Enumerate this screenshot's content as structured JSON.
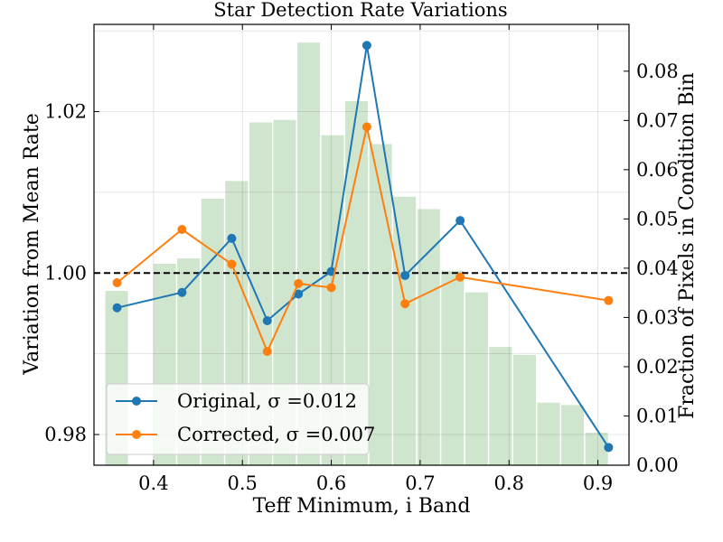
{
  "chart_data": {
    "type": "line",
    "title": "Star Detection Rate Variations",
    "xlabel": "Teff Minimum, i Band",
    "ylabel": "Variation from Mean Rate",
    "y2label": "Fraction of Pixels in Condition Bin",
    "xlim": [
      0.333,
      0.935
    ],
    "ylim": [
      0.9762,
      1.0308
    ],
    "y2lim": [
      0.0,
      0.0895
    ],
    "x_ticks": [
      "0.4",
      "0.5",
      "0.6",
      "0.7",
      "0.8",
      "0.9"
    ],
    "x_tick_values": [
      0.4,
      0.5,
      0.6,
      0.7,
      0.8,
      0.9
    ],
    "y_ticks": [
      "0.98",
      "1.00",
      "1.02"
    ],
    "y_tick_values": [
      0.98,
      1.0,
      1.02
    ],
    "y2_ticks": [
      "0.00",
      "0.01",
      "0.02",
      "0.03",
      "0.04",
      "0.05",
      "0.06",
      "0.07",
      "0.08"
    ],
    "y2_tick_values": [
      0.0,
      0.01,
      0.02,
      0.03,
      0.04,
      0.05,
      0.06,
      0.07,
      0.08
    ],
    "grid": true,
    "legend_position": "lower-left",
    "reference_line": 1.0,
    "histogram": {
      "color": "#cfe5cd",
      "centers": [
        0.3585,
        0.4125,
        0.4395,
        0.4665,
        0.4935,
        0.5205,
        0.5475,
        0.5745,
        0.6015,
        0.6285,
        0.6555,
        0.6825,
        0.7095,
        0.7365,
        0.7635,
        0.7905,
        0.8175,
        0.8445,
        0.8715,
        0.8985
      ],
      "width": 0.0255,
      "values": [
        0.0354,
        0.0409,
        0.042,
        0.0541,
        0.0577,
        0.0696,
        0.0701,
        0.0858,
        0.067,
        0.0739,
        0.0652,
        0.0545,
        0.052,
        0.0395,
        0.0351,
        0.024,
        0.0224,
        0.0127,
        0.0122,
        0.0066
      ]
    },
    "series": [
      {
        "name": "Original, σ =0.012",
        "color": "#1f77b4",
        "x": [
          0.359,
          0.432,
          0.488,
          0.528,
          0.563,
          0.6,
          0.64,
          0.683,
          0.745,
          0.912
        ],
        "y": [
          0.9957,
          0.9976,
          1.0043,
          0.9941,
          0.9974,
          1.0002,
          1.0282,
          0.9997,
          1.0065,
          0.9784
        ]
      },
      {
        "name": "Corrected, σ =0.007",
        "color": "#ff7f0e",
        "x": [
          0.359,
          0.432,
          0.488,
          0.528,
          0.563,
          0.6,
          0.64,
          0.683,
          0.745,
          0.912
        ],
        "y": [
          0.9988,
          1.0054,
          1.0011,
          0.9903,
          0.9987,
          0.9982,
          1.0181,
          0.9962,
          0.9995,
          0.9966
        ]
      }
    ]
  }
}
